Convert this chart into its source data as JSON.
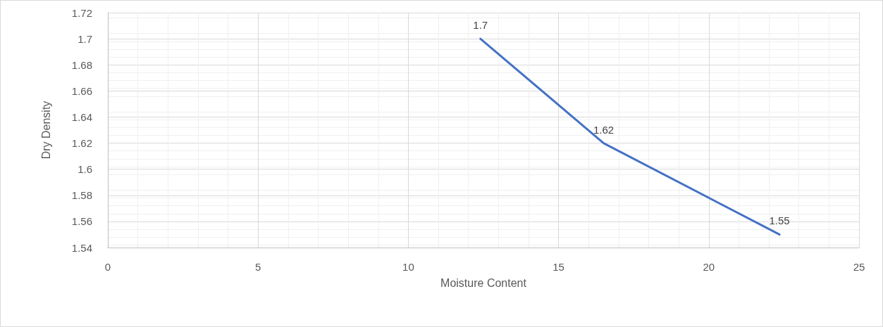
{
  "chart_data": {
    "type": "line",
    "xlabel": "Moisture Content",
    "ylabel": "Dry Density",
    "x": [
      12.4,
      16.5,
      22.35
    ],
    "series": [
      {
        "color": "#4472c4",
        "values": [
          1.7,
          1.62,
          1.55
        ]
      }
    ],
    "xlim": [
      0,
      25
    ],
    "xticks": [
      0,
      5,
      10,
      15,
      20,
      25
    ],
    "ylim": [
      1.54,
      1.72
    ],
    "yticks": [
      1.54,
      1.56,
      1.58,
      1.6,
      1.62,
      1.64,
      1.66,
      1.68,
      1.7,
      1.72
    ],
    "grid": true,
    "data_labels": true,
    "marker": "none",
    "line_style": "solid"
  }
}
